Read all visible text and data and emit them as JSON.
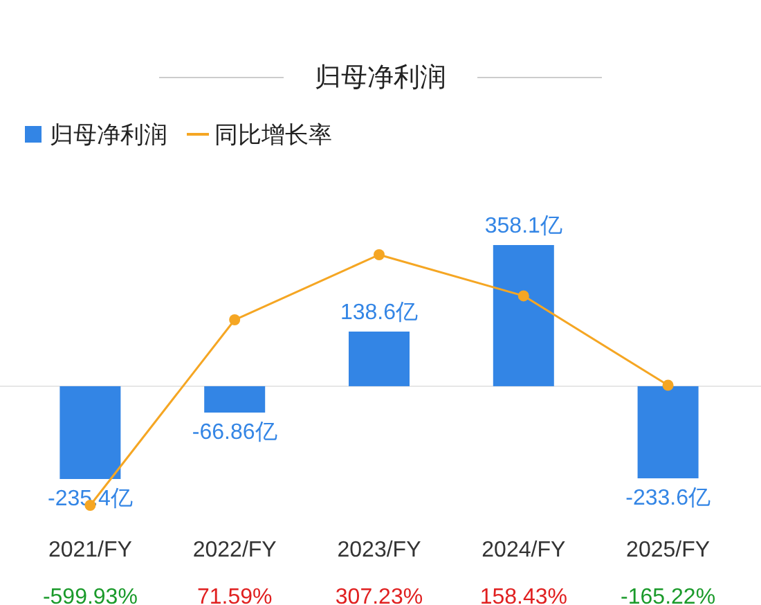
{
  "chart_data": {
    "type": "bar",
    "title": "归母净利润",
    "categories": [
      "2021/FY",
      "2022/FY",
      "2023/FY",
      "2024/FY",
      "2025/FY"
    ],
    "series": [
      {
        "name": "归母净利润",
        "color": "#3385e5",
        "values": [
          -235.4,
          -66.86,
          138.6,
          358.1,
          -233.6
        ],
        "value_labels": [
          "-235.4亿",
          "-66.86亿",
          "138.6亿",
          "358.1亿",
          "-233.6亿"
        ]
      },
      {
        "name": "同比增长率",
        "type": "line",
        "axis": "y2",
        "color": "#f5a623",
        "marker": "circle",
        "values": [
          -599.93,
          71.59,
          307.23,
          158.43,
          -165.22
        ],
        "value_labels": [
          "-599.93%",
          "71.59%",
          "307.23%",
          "158.43%",
          "-165.22%"
        ]
      }
    ],
    "legend": "top left"
  }
}
